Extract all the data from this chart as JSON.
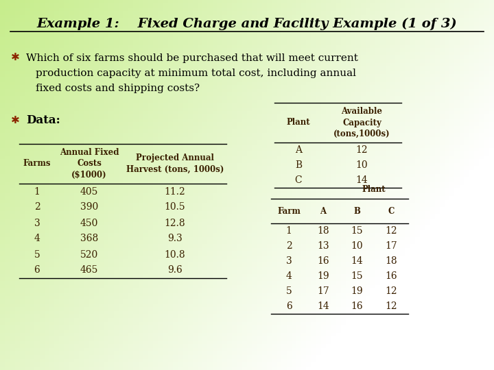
{
  "title": "Example 1:    Fixed Charge and Facility Example (1 of 3)",
  "bullet1_line1": "Which of six farms should be purchased that will meet current",
  "bullet1_line2": "production capacity at minimum total cost, including annual",
  "bullet1_line3": "fixed costs and shipping costs?",
  "bullet2": "Data:",
  "left_table_headers": [
    "Farms",
    "Annual Fixed\nCosts\n($1000)",
    "Projected Annual\nHarvest (tons, 1000s)"
  ],
  "left_table_data": [
    [
      "1",
      "405",
      "11.2"
    ],
    [
      "2",
      "390",
      "10.5"
    ],
    [
      "3",
      "450",
      "12.8"
    ],
    [
      "4",
      "368",
      "9.3"
    ],
    [
      "5",
      "520",
      "10.8"
    ],
    [
      "6",
      "465",
      "9.6"
    ]
  ],
  "right_table1_headers": [
    "Plant",
    "Available\nCapacity\n(tons,1000s)"
  ],
  "right_table1_data": [
    [
      "A",
      "12"
    ],
    [
      "B",
      "10"
    ],
    [
      "C",
      "14"
    ]
  ],
  "right_table2_col_header": "Plant",
  "right_table2_headers": [
    "Farm",
    "A",
    "B",
    "C"
  ],
  "right_table2_data": [
    [
      "1",
      "18",
      "15",
      "12"
    ],
    [
      "2",
      "13",
      "10",
      "17"
    ],
    [
      "3",
      "16",
      "14",
      "18"
    ],
    [
      "4",
      "19",
      "15",
      "16"
    ],
    [
      "5",
      "17",
      "19",
      "12"
    ],
    [
      "6",
      "14",
      "16",
      "12"
    ]
  ],
  "text_color": "#000000",
  "title_color": "#000000",
  "bullet_color": "#8B2500",
  "table_text_color": "#3a2000",
  "bg_green": [
    0.78,
    0.93,
    0.55
  ],
  "bg_white": [
    1.0,
    1.0,
    1.0
  ]
}
